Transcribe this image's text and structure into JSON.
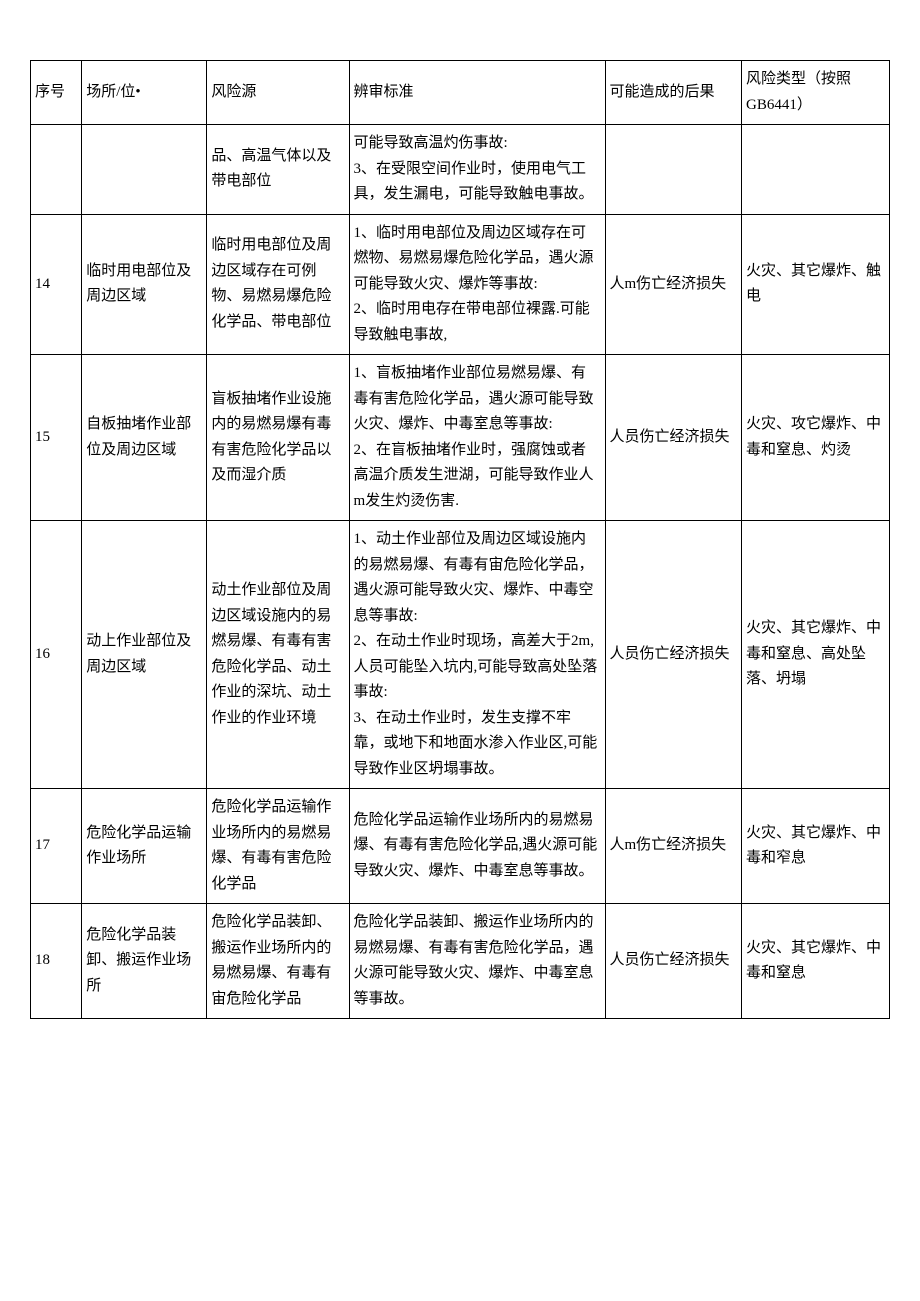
{
  "columns": {
    "seq": "序号",
    "place": "场所/位•",
    "risk_source": "风险源",
    "standard": "辨审标准",
    "consequence": "可能造成的后果",
    "risk_type": "风险类型（按照GB6441）"
  },
  "rows": [
    {
      "seq": "",
      "place": "",
      "risk_source": "品、高温气体以及带电部位",
      "standard": "可能导致高温灼伤事故:\n3、在受限空间作业时，使用电气工具，发生漏电，可能导致触电事故。",
      "consequence": "",
      "risk_type": ""
    },
    {
      "seq": "14",
      "place": "临时用电部位及周边区域",
      "risk_source": "临时用电部位及周边区域存在可例物、易燃易爆危险化学品、带电部位",
      "standard": "1、临时用电部位及周边区域存在可燃物、易燃易爆危险化学品，遇火源可能导致火灾、爆炸等事故:\n2、临时用电存在带电部位裸露.可能导致触电事故,",
      "consequence": "人m伤亡经济损失",
      "risk_type": "火灾、其它爆炸、触电"
    },
    {
      "seq": "15",
      "place": "自板抽堵作业部位及周边区域",
      "risk_source": "盲板抽堵作业设施内的易燃易爆有毒有害危险化学品以及而湿介质",
      "standard": "1、盲板抽堵作业部位易燃易爆、有毒有害危险化学品，遇火源可能导致火灾、爆炸、中毒室息等事故:\n2、在盲板抽堵作业时，强腐蚀或者高温介质发生泄湖，可能导致作业人m发生灼烫伤害.",
      "consequence": "人员伤亡经济损失",
      "risk_type": "火灾、攻它爆炸、中毒和窒息、灼烫"
    },
    {
      "seq": "16",
      "place": "动上作业部位及周边区域",
      "risk_source": "动土作业部位及周边区域设施内的易燃易爆、有毒有害危险化学品、动土作业的深坑、动土作业的作业环境",
      "standard": "1、动土作业部位及周边区域设施内的易燃易爆、有毒有宙危险化学品，遇火源可能导致火灾、爆炸、中毒空息等事故:\n2、在动土作业时现场，高差大于2m,人员可能坠入坑内,可能导致高处坠落事故:\n3、在动土作业时，发生支撑不牢靠，或地下和地面水渗入作业区,可能导致作业区坍塌事故。",
      "consequence": "人员伤亡经济损失",
      "risk_type": "火灾、其它爆炸、中毒和窒息、高处坠落、坍塌"
    },
    {
      "seq": "17",
      "place": "危险化学品运输作业场所",
      "risk_source": "危险化学品运输作业场所内的易燃易爆、有毒有害危险化学品",
      "standard": "危险化学品运输作业场所内的易燃易爆、有毒有害危险化学品,遇火源可能导致火灾、爆炸、中毒室息等事故。",
      "consequence": "人m伤亡经济损失",
      "risk_type": "火灾、其它爆炸、中毒和窄息"
    },
    {
      "seq": "18",
      "place": "危险化学品装卸、搬运作业场所",
      "risk_source": "危险化学品装卸、搬运作业场所内的易燃易爆、有毒有宙危险化学品",
      "standard": "危险化学品装卸、搬运作业场所内的易燃易爆、有毒有害危险化学品，遇火源可能导致火灾、爆炸、中毒室息等事故。",
      "consequence": "人员伤亡经济损失",
      "risk_type": "火灾、其它爆炸、中毒和窒息"
    }
  ]
}
